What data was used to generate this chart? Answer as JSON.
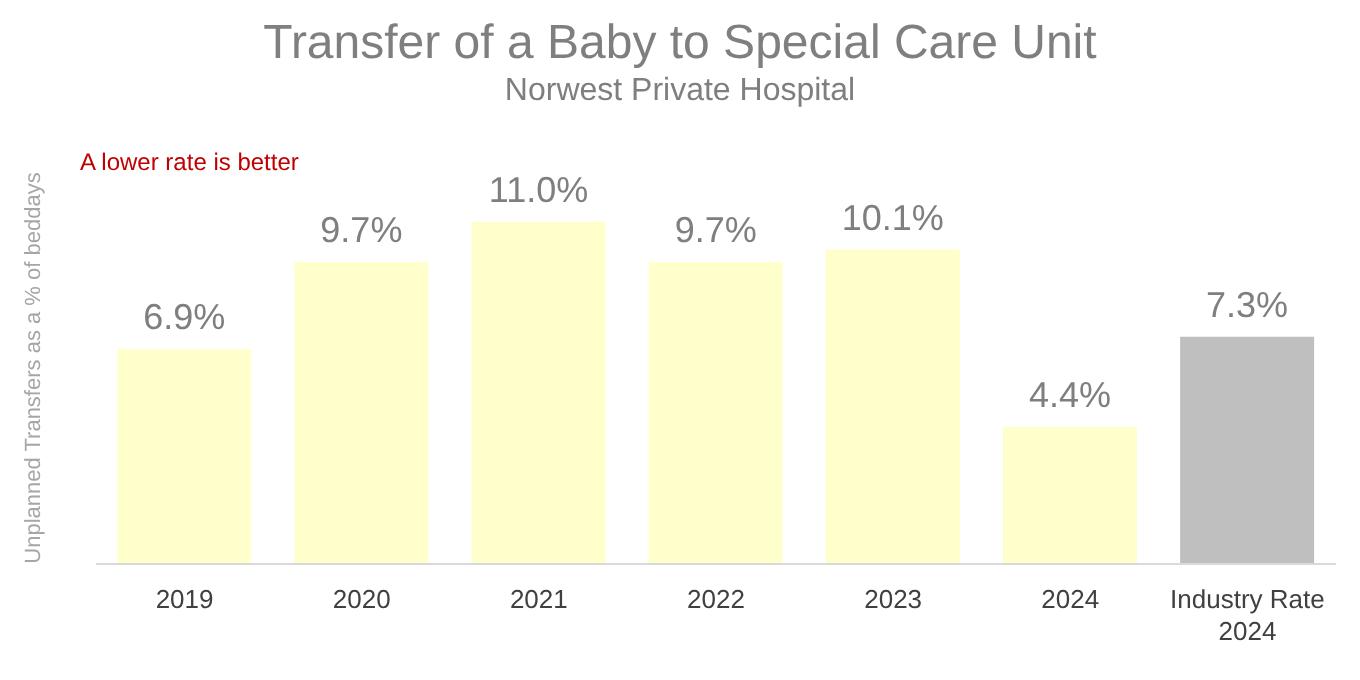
{
  "chart_data": {
    "type": "bar",
    "title": "Transfer of a Baby to Special Care Unit",
    "subtitle": "Norwest Private Hospital",
    "ylabel": "Unplanned Transfers as a % of beddays",
    "annotations": [
      "A lower rate is better"
    ],
    "categories": [
      "2019",
      "2020",
      "2021",
      "2022",
      "2023",
      "2024",
      "Industry Rate 2024"
    ],
    "values": [
      6.9,
      9.7,
      11.0,
      9.7,
      10.1,
      4.4,
      7.3
    ],
    "value_labels": [
      "6.9%",
      "9.7%",
      "11.0%",
      "9.7%",
      "10.1%",
      "4.4%",
      "7.3%"
    ],
    "colors": [
      "#ffffcc",
      "#ffffcc",
      "#ffffcc",
      "#ffffcc",
      "#ffffcc",
      "#ffffcc",
      "#bfbfbf"
    ]
  }
}
